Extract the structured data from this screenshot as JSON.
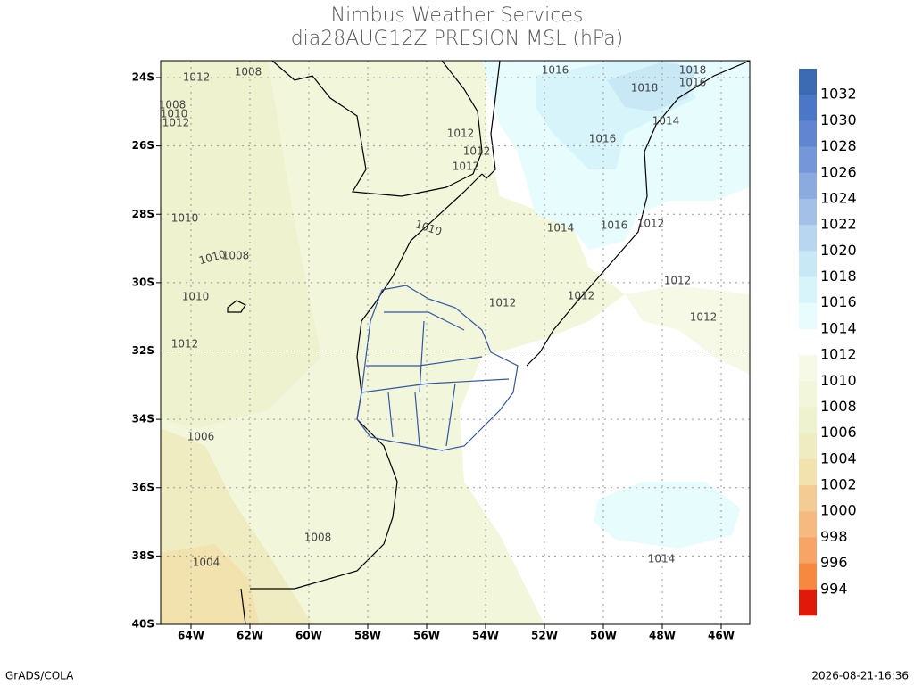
{
  "header": {
    "title": "Nimbus Weather Services",
    "subtitle": "dia28AUG12Z PRESION MSL (hPa)"
  },
  "map": {
    "lat_ticks": [
      "24S",
      "26S",
      "28S",
      "30S",
      "32S",
      "34S",
      "36S",
      "38S",
      "40S"
    ],
    "lon_ticks": [
      "64W",
      "62W",
      "60W",
      "58W",
      "56W",
      "54W",
      "52W",
      "50W",
      "48W",
      "46W"
    ],
    "contour_labels": [
      "1012",
      "1008",
      "1008",
      "1010",
      "1012",
      "1012",
      "1012",
      "1012",
      "1016",
      "1018",
      "1018",
      "1016",
      "1014",
      "1016",
      "1010",
      "1010",
      "1014",
      "1016",
      "1012",
      "1010",
      "1008",
      "1010",
      "1012",
      "1012",
      "1012",
      "1012",
      "1012",
      "1006",
      "1008",
      "1004",
      "1014"
    ]
  },
  "colorbar": {
    "labels": [
      "1032",
      "1030",
      "1028",
      "1026",
      "1024",
      "1022",
      "1020",
      "1018",
      "1016",
      "1014",
      "1012",
      "1010",
      "1008",
      "1006",
      "1004",
      "1002",
      "1000",
      "998",
      "996",
      "994"
    ],
    "colors": [
      "#3c6ab3",
      "#4c77c8",
      "#6285d2",
      "#7596d9",
      "#8aaae0",
      "#a3c1e8",
      "#b8d6f0",
      "#c8e8f6",
      "#d6f4f9",
      "#e6fcfd",
      "#ffffff",
      "#f6f9e6",
      "#f2f6da",
      "#eef2cf",
      "#efecc2",
      "#f2e2ae",
      "#f4cc93",
      "#f6b980",
      "#f8a466",
      "#f6883f",
      "#e01a0a"
    ]
  },
  "footer": {
    "left": "GrADS/COLA",
    "right": "2026-08-21-16:36"
  }
}
